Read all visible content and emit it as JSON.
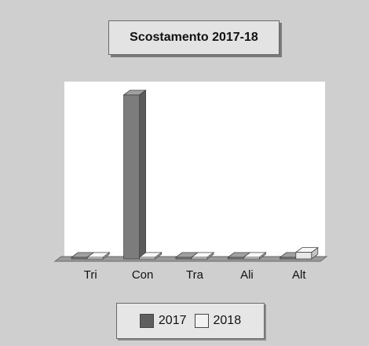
{
  "chart_data": {
    "type": "bar",
    "title": "Scostamento 2017-18",
    "categories": [
      "Tri",
      "Con",
      "Tra",
      "Ali",
      "Alt"
    ],
    "series": [
      {
        "name": "2017",
        "values": [
          1,
          100,
          1,
          1,
          1
        ]
      },
      {
        "name": "2018",
        "values": [
          1,
          1,
          1,
          1,
          4
        ]
      }
    ],
    "ylim": [
      0,
      100
    ],
    "grid": false,
    "legend": "bottom",
    "colors": {
      "2017": "#7c7c7c",
      "2018": "#e8e8e8",
      "plot_bg": "#ffffff",
      "floor": "#9a9a9a"
    }
  }
}
